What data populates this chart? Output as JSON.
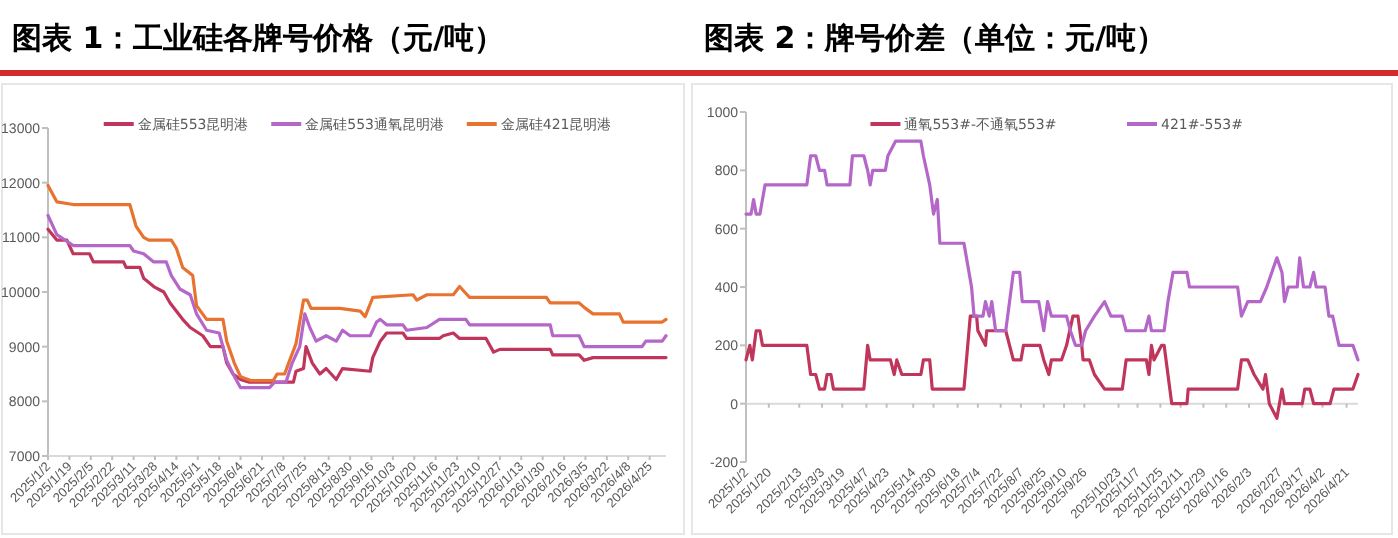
{
  "chart_data": [
    {
      "type": "line",
      "title": "图表 1：工业硅各牌号价格（元/吨）",
      "legend": "top",
      "xlim": [
        "2025-01-02",
        "2026-05-08"
      ],
      "xticks": [
        {
          "value": "2025-01-02",
          "label": "2025/1/2"
        },
        {
          "value": "2025-01-19",
          "label": "2025/1/19"
        },
        {
          "value": "2025-02-05",
          "label": "2025/2/5"
        },
        {
          "value": "2025-02-22",
          "label": "2025/2/22"
        },
        {
          "value": "2025-03-11",
          "label": "2025/3/11"
        },
        {
          "value": "2025-03-28",
          "label": "2025/3/28"
        },
        {
          "value": "2025-04-14",
          "label": "2025/4/14"
        },
        {
          "value": "2025-05-01",
          "label": "2025/5/1"
        },
        {
          "value": "2025-05-18",
          "label": "2025/5/18"
        },
        {
          "value": "2025-06-04",
          "label": "2025/6/4"
        },
        {
          "value": "2025-06-21",
          "label": "2025/6/21"
        },
        {
          "value": "2025-07-08",
          "label": "2025/7/8"
        },
        {
          "value": "2025-07-25",
          "label": "2025/7/25"
        },
        {
          "value": "2025-08-13",
          "label": "2025/8/13"
        },
        {
          "value": "2025-08-30",
          "label": "2025/8/30"
        },
        {
          "value": "2025-09-16",
          "label": "2025/9/16"
        },
        {
          "value": "2025-10-03",
          "label": "2025/10/3"
        },
        {
          "value": "2025-10-20",
          "label": "2025/10/20"
        },
        {
          "value": "2025-11-06",
          "label": "2025/11/6"
        },
        {
          "value": "2025-11-23",
          "label": "2025/11/23"
        },
        {
          "value": "2025-12-10",
          "label": "2025/12/10"
        },
        {
          "value": "2025-12-27",
          "label": "2025/12/27"
        },
        {
          "value": "2026-01-13",
          "label": "2026/1/13"
        },
        {
          "value": "2026-01-30",
          "label": "2026/1/30"
        },
        {
          "value": "2026-02-16",
          "label": "2026/2/16"
        },
        {
          "value": "2026-03-05",
          "label": "2026/3/5"
        },
        {
          "value": "2026-03-22",
          "label": "2026/3/22"
        },
        {
          "value": "2026-04-08",
          "label": "2026/4/8"
        },
        {
          "value": "2026-04-25",
          "label": "2026/4/25"
        }
      ],
      "ylim": [
        7000,
        13000
      ],
      "yticks": [
        7000,
        8000,
        9000,
        10000,
        11000,
        12000,
        13000
      ],
      "series": [
        {
          "name": "金属硅553昆明港",
          "color": "#c0355c",
          "x": [
            "2025-01-02",
            "2025-01-09",
            "2025-01-17",
            "2025-01-22",
            "2025-02-04",
            "2025-02-07",
            "2025-03-03",
            "2025-03-05",
            "2025-03-16",
            "2025-03-19",
            "2025-03-27",
            "2025-04-04",
            "2025-04-09",
            "2025-04-19",
            "2025-04-25",
            "2025-05-05",
            "2025-05-11",
            "2025-05-21",
            "2025-05-24",
            "2025-05-29",
            "2025-06-04",
            "2025-06-11",
            "2025-07-16",
            "2025-07-18",
            "2025-07-24",
            "2025-07-26",
            "2025-07-31",
            "2025-08-06",
            "2025-08-11",
            "2025-08-19",
            "2025-08-24",
            "2025-09-15",
            "2025-09-17",
            "2025-09-23",
            "2025-09-28",
            "2025-10-11",
            "2025-10-14",
            "2025-11-09",
            "2025-11-12",
            "2025-11-20",
            "2025-11-25",
            "2025-12-16",
            "2025-12-22",
            "2025-12-27",
            "2026-02-05",
            "2026-02-07",
            "2026-02-28",
            "2026-03-04",
            "2026-03-11",
            "2026-05-08"
          ],
          "values": [
            11150,
            10950,
            10950,
            10700,
            10700,
            10550,
            10550,
            10450,
            10450,
            10250,
            10100,
            10000,
            9800,
            9500,
            9350,
            9200,
            9000,
            9000,
            8700,
            8500,
            8400,
            8350,
            8350,
            8550,
            8600,
            9000,
            8700,
            8500,
            8600,
            8400,
            8600,
            8550,
            8800,
            9100,
            9250,
            9250,
            9150,
            9150,
            9200,
            9250,
            9150,
            9150,
            8900,
            8950,
            8950,
            8850,
            8850,
            8750,
            8800,
            8800
          ]
        },
        {
          "name": "金属硅553通氧昆明港",
          "color": "#b566c9",
          "x": [
            "2025-01-02",
            "2025-01-09",
            "2025-01-22",
            "2025-03-08",
            "2025-03-11",
            "2025-03-19",
            "2025-03-27",
            "2025-04-06",
            "2025-04-10",
            "2025-04-17",
            "2025-04-25",
            "2025-04-30",
            "2025-05-08",
            "2025-05-18",
            "2025-05-24",
            "2025-05-29",
            "2025-06-04",
            "2025-06-27",
            "2025-07-01",
            "2025-07-10",
            "2025-07-15",
            "2025-07-21",
            "2025-07-25",
            "2025-07-29",
            "2025-08-03",
            "2025-08-11",
            "2025-08-19",
            "2025-08-24",
            "2025-08-30",
            "2025-09-15",
            "2025-09-20",
            "2025-09-23",
            "2025-09-28",
            "2025-10-11",
            "2025-10-14",
            "2025-10-30",
            "2025-11-09",
            "2025-11-30",
            "2025-12-03",
            "2026-02-05",
            "2026-02-07",
            "2026-02-28",
            "2026-03-04",
            "2026-04-19",
            "2026-04-22",
            "2026-05-05",
            "2026-05-08"
          ],
          "values": [
            11400,
            11050,
            10850,
            10850,
            10750,
            10700,
            10550,
            10550,
            10300,
            10050,
            9950,
            9600,
            9300,
            9250,
            8750,
            8500,
            8250,
            8250,
            8350,
            8350,
            8700,
            9000,
            9600,
            9350,
            9100,
            9200,
            9100,
            9300,
            9200,
            9200,
            9450,
            9500,
            9400,
            9400,
            9300,
            9350,
            9500,
            9500,
            9400,
            9400,
            9200,
            9200,
            9000,
            9000,
            9100,
            9100,
            9200
          ]
        },
        {
          "name": "金属硅421昆明港",
          "color": "#e8722f",
          "x": [
            "2025-01-02",
            "2025-01-09",
            "2025-01-22",
            "2025-03-08",
            "2025-03-13",
            "2025-03-19",
            "2025-03-23",
            "2025-04-10",
            "2025-04-14",
            "2025-04-19",
            "2025-04-27",
            "2025-04-30",
            "2025-05-08",
            "2025-05-21",
            "2025-05-24",
            "2025-05-30",
            "2025-06-04",
            "2025-06-12",
            "2025-06-30",
            "2025-07-03",
            "2025-07-09",
            "2025-07-13",
            "2025-07-18",
            "2025-07-24",
            "2025-07-27",
            "2025-07-30",
            "2025-08-22",
            "2025-09-07",
            "2025-09-11",
            "2025-09-17",
            "2025-10-19",
            "2025-10-22",
            "2025-10-30",
            "2025-11-20",
            "2025-11-25",
            "2025-12-03",
            "2026-02-02",
            "2026-02-05",
            "2026-02-28",
            "2026-03-05",
            "2026-03-11",
            "2026-04-01",
            "2026-04-04",
            "2026-05-05",
            "2026-05-08"
          ],
          "values": [
            11950,
            11650,
            11600,
            11600,
            11200,
            11000,
            10950,
            10950,
            10800,
            10450,
            10300,
            9750,
            9500,
            9500,
            9100,
            8700,
            8450,
            8380,
            8380,
            8500,
            8500,
            8750,
            9050,
            9850,
            9850,
            9700,
            9700,
            9650,
            9550,
            9900,
            9950,
            9850,
            9950,
            9950,
            10100,
            9900,
            9900,
            9800,
            9800,
            9700,
            9600,
            9600,
            9450,
            9450,
            9500
          ]
        }
      ]
    },
    {
      "type": "line",
      "title": "图表 2：牌号价差（单位：元/吨）",
      "legend": "top",
      "xlim": [
        "2025-01-02",
        "2026-04-30"
      ],
      "xticks": [
        {
          "value": "2025-01-02",
          "label": "2025/1/2"
        },
        {
          "value": "2025-01-20",
          "label": "2025/1/20"
        },
        {
          "value": "2025-02-13",
          "label": "2025/2/13"
        },
        {
          "value": "2025-03-03",
          "label": "2025/3/3"
        },
        {
          "value": "2025-03-19",
          "label": "2025/3/19"
        },
        {
          "value": "2025-04-07",
          "label": "2025/4/7"
        },
        {
          "value": "2025-04-23",
          "label": "2025/4/23"
        },
        {
          "value": "2025-05-14",
          "label": "2025/5/14"
        },
        {
          "value": "2025-05-30",
          "label": "2025/5/30"
        },
        {
          "value": "2025-06-18",
          "label": "2025/6/18"
        },
        {
          "value": "2025-07-04",
          "label": "2025/7/4"
        },
        {
          "value": "2025-07-22",
          "label": "2025/7/22"
        },
        {
          "value": "2025-08-07",
          "label": "2025/8/7"
        },
        {
          "value": "2025-08-25",
          "label": "2025/8/25"
        },
        {
          "value": "2025-09-10",
          "label": "2025/9/10"
        },
        {
          "value": "2025-09-26",
          "label": "2025/9/26"
        },
        {
          "value": "2025-10-23",
          "label": "2025/10/23"
        },
        {
          "value": "2025-11-07",
          "label": "2025/11/7"
        },
        {
          "value": "2025-11-25",
          "label": "2025/11/25"
        },
        {
          "value": "2025-12-11",
          "label": "2025/12/11"
        },
        {
          "value": "2025-12-29",
          "label": "2025/12/29"
        },
        {
          "value": "2026-01-16",
          "label": "2026/1/16"
        },
        {
          "value": "2026-02-03",
          "label": "2026/2/3"
        },
        {
          "value": "2026-02-27",
          "label": "2026/2/27"
        },
        {
          "value": "2026-03-17",
          "label": "2026/3/17"
        },
        {
          "value": "2026-04-02",
          "label": "2026/4/2"
        },
        {
          "value": "2026-04-21",
          "label": "2026/4/21"
        }
      ],
      "ylim": [
        -200,
        1000
      ],
      "yticks": [
        -200,
        0,
        200,
        400,
        600,
        800,
        1000
      ],
      "series": [
        {
          "name": "通氧553#-不通氧553#",
          "color": "#c0355c",
          "x": [
            "2025-01-02",
            "2025-01-05",
            "2025-01-07",
            "2025-01-10",
            "2025-01-13",
            "2025-01-15",
            "2025-02-19",
            "2025-02-22",
            "2025-02-26",
            "2025-03-01",
            "2025-03-05",
            "2025-03-07",
            "2025-03-10",
            "2025-03-12",
            "2025-04-05",
            "2025-04-08",
            "2025-04-10",
            "2025-04-26",
            "2025-04-29",
            "2025-05-01",
            "2025-05-05",
            "2025-05-20",
            "2025-05-22",
            "2025-05-27",
            "2025-05-29",
            "2025-06-23",
            "2025-06-28",
            "2025-07-03",
            "2025-07-04",
            "2025-07-10",
            "2025-07-11",
            "2025-07-26",
            "2025-07-29",
            "2025-08-01",
            "2025-08-07",
            "2025-08-09",
            "2025-08-22",
            "2025-08-25",
            "2025-08-29",
            "2025-08-31",
            "2025-09-08",
            "2025-09-12",
            "2025-09-17",
            "2025-09-21",
            "2025-09-24",
            "2025-09-25",
            "2025-09-30",
            "2025-10-04",
            "2025-10-12",
            "2025-10-26",
            "2025-10-29",
            "2025-11-14",
            "2025-11-16",
            "2025-11-18",
            "2025-11-20",
            "2025-11-26",
            "2025-11-28",
            "2025-12-01",
            "2025-12-04",
            "2025-12-16",
            "2025-12-17",
            "2026-01-25",
            "2026-01-28",
            "2026-02-02",
            "2026-02-07",
            "2026-02-14",
            "2026-02-16",
            "2026-02-19",
            "2026-02-25",
            "2026-03-01",
            "2026-03-03",
            "2026-03-17",
            "2026-03-19",
            "2026-03-23",
            "2026-03-26",
            "2026-04-08",
            "2026-04-11",
            "2026-04-26",
            "2026-04-30"
          ],
          "values": [
            150,
            200,
            150,
            250,
            250,
            200,
            200,
            100,
            100,
            50,
            50,
            100,
            100,
            50,
            50,
            200,
            150,
            150,
            100,
            150,
            100,
            100,
            150,
            150,
            50,
            50,
            300,
            300,
            250,
            200,
            250,
            250,
            200,
            150,
            150,
            200,
            200,
            150,
            100,
            150,
            150,
            200,
            300,
            300,
            200,
            150,
            150,
            100,
            50,
            50,
            150,
            150,
            100,
            200,
            150,
            200,
            200,
            100,
            0,
            0,
            50,
            50,
            150,
            150,
            100,
            50,
            100,
            0,
            -50,
            50,
            0,
            0,
            50,
            50,
            0,
            0,
            50,
            50,
            100
          ]
        },
        {
          "name": "421#-553#",
          "color": "#b566c9",
          "x": [
            "2025-01-02",
            "2025-01-06",
            "2025-01-08",
            "2025-01-10",
            "2025-01-13",
            "2025-01-17",
            "2025-02-19",
            "2025-02-22",
            "2025-02-26",
            "2025-03-01",
            "2025-03-05",
            "2025-03-07",
            "2025-03-25",
            "2025-03-27",
            "2025-04-05",
            "2025-04-08",
            "2025-04-10",
            "2025-04-12",
            "2025-04-22",
            "2025-04-24",
            "2025-04-30",
            "2025-05-20",
            "2025-05-22",
            "2025-05-27",
            "2025-05-30",
            "2025-06-02",
            "2025-06-04",
            "2025-06-23",
            "2025-06-29",
            "2025-07-01",
            "2025-07-08",
            "2025-07-10",
            "2025-07-13",
            "2025-07-15",
            "2025-07-18",
            "2025-07-26",
            "2025-07-29",
            "2025-08-01",
            "2025-08-06",
            "2025-08-08",
            "2025-08-21",
            "2025-08-25",
            "2025-08-28",
            "2025-08-31",
            "2025-09-12",
            "2025-09-15",
            "2025-09-19",
            "2025-09-24",
            "2025-09-27",
            "2025-10-04",
            "2025-10-12",
            "2025-10-17",
            "2025-10-26",
            "2025-10-29",
            "2025-11-13",
            "2025-11-16",
            "2025-11-18",
            "2025-11-28",
            "2025-12-01",
            "2025-12-05",
            "2025-12-16",
            "2025-12-18",
            "2026-01-25",
            "2026-01-28",
            "2026-02-02",
            "2026-02-12",
            "2026-02-17",
            "2026-02-25",
            "2026-03-01",
            "2026-03-03",
            "2026-03-06",
            "2026-03-13",
            "2026-03-15",
            "2026-03-18",
            "2026-03-23",
            "2026-03-26",
            "2026-03-28",
            "2026-04-04",
            "2026-04-07",
            "2026-04-10",
            "2026-04-15",
            "2026-04-26",
            "2026-04-30"
          ],
          "values": [
            650,
            650,
            700,
            650,
            650,
            750,
            750,
            850,
            850,
            800,
            800,
            750,
            750,
            850,
            850,
            800,
            750,
            800,
            800,
            850,
            900,
            900,
            850,
            750,
            650,
            700,
            550,
            550,
            400,
            300,
            300,
            350,
            300,
            350,
            250,
            250,
            350,
            450,
            450,
            350,
            350,
            250,
            350,
            300,
            300,
            250,
            200,
            200,
            250,
            300,
            350,
            300,
            300,
            250,
            250,
            300,
            250,
            250,
            350,
            450,
            450,
            400,
            400,
            300,
            350,
            350,
            400,
            500,
            450,
            350,
            400,
            400,
            500,
            400,
            400,
            450,
            400,
            400,
            300,
            300,
            200,
            200,
            150
          ]
        }
      ]
    }
  ]
}
